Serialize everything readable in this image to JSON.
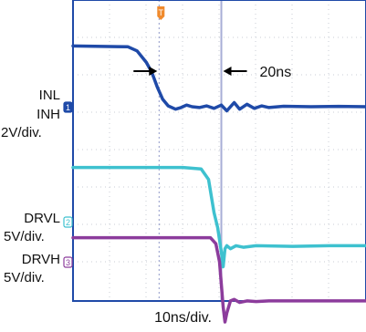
{
  "chart_data": {
    "type": "line",
    "title": "",
    "xlabel": "10ns/div.",
    "ylabel": "",
    "grid": true,
    "xlim": [
      0,
      320
    ],
    "trigger_marker": "T",
    "annotations": [
      {
        "text": "20ns",
        "type": "interval-arrows",
        "from_ns": 94,
        "to_ns": 162
      }
    ],
    "series": [
      {
        "name": "INL INH",
        "channel": "1",
        "scale": "2V/div.",
        "color": "#1f4aa8",
        "x": [
          0,
          60,
          70,
          80,
          86,
          92,
          98,
          104,
          112,
          118,
          124,
          130,
          138,
          146,
          154,
          162,
          168,
          176,
          182,
          190,
          198,
          206,
          214,
          230,
          260,
          290,
          320
        ],
        "y": [
          3.7,
          3.65,
          3.4,
          2.7,
          2.1,
          1.2,
          0.45,
          0.05,
          -0.15,
          -0.05,
          0.1,
          0.0,
          -0.05,
          0.05,
          -0.1,
          0.1,
          -0.25,
          0.25,
          -0.15,
          0.15,
          -0.1,
          0.05,
          -0.05,
          0.03,
          0.0,
          0.02,
          0.0
        ]
      },
      {
        "name": "DRVL",
        "channel": "2",
        "scale": "5V/div.",
        "color": "#3ec1cf",
        "x": [
          0,
          40,
          80,
          120,
          140,
          148,
          154,
          158,
          162,
          164,
          166,
          168,
          172,
          178,
          186,
          200,
          240,
          280,
          320
        ],
        "y": [
          1.8,
          1.8,
          1.8,
          1.8,
          1.75,
          1.4,
          0.3,
          -0.2,
          -1.0,
          -1.5,
          -0.9,
          -0.8,
          -0.9,
          -0.8,
          -0.85,
          -0.8,
          -0.82,
          -0.8,
          -0.8
        ]
      },
      {
        "name": "DRVH",
        "channel": "3",
        "scale": "5V/div.",
        "color": "#8c3c9c",
        "x": [
          0,
          60,
          120,
          150,
          156,
          160,
          164,
          166,
          168,
          172,
          176,
          182,
          190,
          200,
          214,
          240,
          280,
          320
        ],
        "y": [
          0.8,
          0.8,
          0.8,
          0.8,
          0.6,
          0.0,
          -1.5,
          -2.0,
          -1.7,
          -1.3,
          -1.25,
          -1.35,
          -1.3,
          -1.32,
          -1.3,
          -1.3,
          -1.3,
          -1.3
        ]
      }
    ]
  },
  "labels": {
    "inl": "INL",
    "inh": "INH",
    "ch1_scale": "2V/div.",
    "drvl": "DRVL",
    "ch2_scale": "5V/div.",
    "drvh": "DRVH",
    "ch3_scale": "5V/div."
  }
}
